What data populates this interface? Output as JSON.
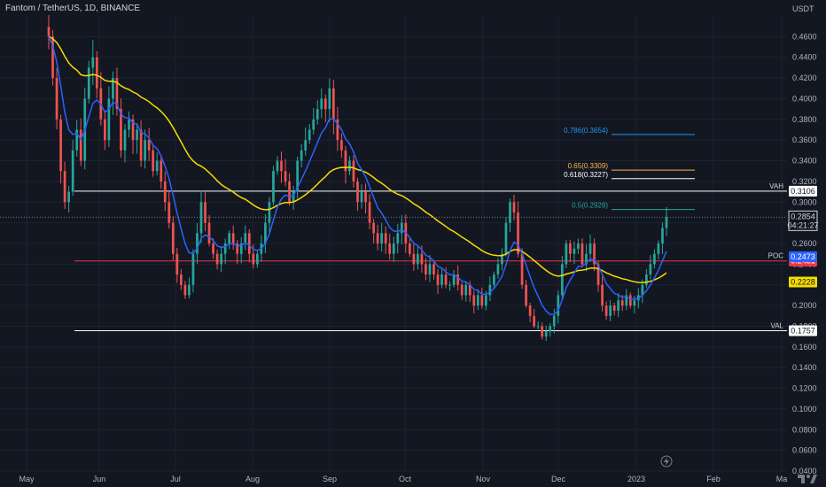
{
  "header": {
    "title": "Fantom / TetherUS, 1D, BINANCE"
  },
  "icons": {
    "logo": "tradingview-logo-icon",
    "flash": "lightning-icon"
  },
  "chart_data": {
    "type": "candlestick",
    "title": "Fantom / TetherUS, 1D, BINANCE",
    "y_unit_label": "USDT",
    "ylim": [
      0.04,
      0.48
    ],
    "y_ticks": [
      "0.4600",
      "0.4400",
      "0.4200",
      "0.4000",
      "0.3800",
      "0.3600",
      "0.3400",
      "0.3200",
      "0.3000",
      "0.2800",
      "0.2600",
      "0.2400",
      "0.2200",
      "0.2000",
      "0.1800",
      "0.1600",
      "0.1400",
      "0.1200",
      "0.1000",
      "0.0800",
      "0.0600",
      "0.0400"
    ],
    "x_ticks": [
      "May",
      "Jun",
      "Jul",
      "Aug",
      "Sep",
      "Oct",
      "Nov",
      "Dec",
      "2023",
      "Feb",
      "Ma"
    ],
    "colors": {
      "up": "#26a69a",
      "down": "#ef5350",
      "ema_fast": "#2962ff",
      "ema_slow": "#f7dc00",
      "vah_val": "#ffffff",
      "poc": "#f23645",
      "fib_0786": "#2196f3",
      "fib_0650": "#ffb74d",
      "fib_0618": "#ffffff",
      "fib_0500": "#26a69a"
    },
    "levels": [
      {
        "name": "VAH",
        "value": 0.3106,
        "label": "0.3106"
      },
      {
        "name": "POC",
        "value": 0.2431,
        "label": "0.2431"
      },
      {
        "name": "VAL",
        "value": 0.1757,
        "label": "0.1757"
      }
    ],
    "fib_levels": [
      {
        "label": "0.786(0.3654)",
        "value": 0.3654
      },
      {
        "label": "0.65(0.3309)",
        "value": 0.3309
      },
      {
        "label": "0.618(0.3227)",
        "value": 0.3227
      },
      {
        "label": "0.5(0.2928)",
        "value": 0.2928
      }
    ],
    "price_tags": [
      {
        "value": 0.2854,
        "label": "0.2854",
        "sub": "04:21:27",
        "kind": "last"
      },
      {
        "value": 0.2473,
        "label": "0.2473",
        "kind": "ema_fast"
      },
      {
        "value": 0.2228,
        "label": "0.2228",
        "kind": "ema_slow"
      }
    ],
    "closes": [
      0.46,
      0.42,
      0.38,
      0.33,
      0.3,
      0.31,
      0.35,
      0.37,
      0.34,
      0.4,
      0.43,
      0.44,
      0.41,
      0.38,
      0.36,
      0.4,
      0.42,
      0.39,
      0.35,
      0.37,
      0.38,
      0.36,
      0.37,
      0.34,
      0.36,
      0.35,
      0.33,
      0.34,
      0.32,
      0.3,
      0.28,
      0.25,
      0.23,
      0.22,
      0.21,
      0.22,
      0.25,
      0.27,
      0.3,
      0.28,
      0.26,
      0.25,
      0.24,
      0.25,
      0.26,
      0.27,
      0.26,
      0.25,
      0.26,
      0.27,
      0.25,
      0.24,
      0.25,
      0.26,
      0.28,
      0.3,
      0.33,
      0.34,
      0.33,
      0.32,
      0.3,
      0.31,
      0.34,
      0.35,
      0.36,
      0.37,
      0.38,
      0.39,
      0.4,
      0.39,
      0.41,
      0.38,
      0.36,
      0.35,
      0.33,
      0.34,
      0.32,
      0.3,
      0.31,
      0.3,
      0.28,
      0.27,
      0.26,
      0.27,
      0.26,
      0.25,
      0.26,
      0.27,
      0.28,
      0.26,
      0.25,
      0.24,
      0.25,
      0.24,
      0.23,
      0.24,
      0.23,
      0.22,
      0.23,
      0.22,
      0.22,
      0.23,
      0.22,
      0.21,
      0.22,
      0.21,
      0.2,
      0.21,
      0.2,
      0.21,
      0.22,
      0.23,
      0.24,
      0.25,
      0.28,
      0.3,
      0.29,
      0.25,
      0.22,
      0.2,
      0.19,
      0.18,
      0.18,
      0.17,
      0.175,
      0.18,
      0.19,
      0.21,
      0.24,
      0.26,
      0.25,
      0.255,
      0.26,
      0.24,
      0.25,
      0.26,
      0.24,
      0.22,
      0.2,
      0.19,
      0.2,
      0.195,
      0.205,
      0.2,
      0.21,
      0.2,
      0.205,
      0.21,
      0.22,
      0.23,
      0.24,
      0.25,
      0.26,
      0.275,
      0.2854
    ]
  }
}
